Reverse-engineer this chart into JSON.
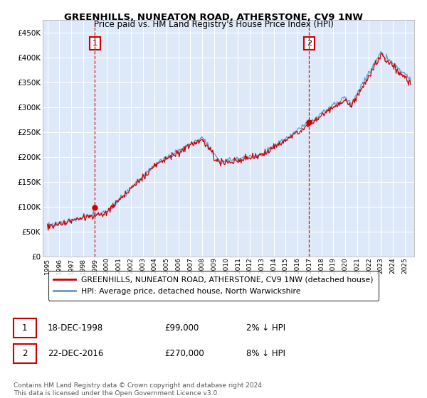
{
  "title": "GREENHILLS, NUNEATON ROAD, ATHERSTONE, CV9 1NW",
  "subtitle": "Price paid vs. HM Land Registry's House Price Index (HPI)",
  "ytick_values": [
    0,
    50000,
    100000,
    150000,
    200000,
    250000,
    300000,
    350000,
    400000,
    450000
  ],
  "ylim": [
    0,
    475000
  ],
  "xlim_start": 1994.6,
  "xlim_end": 2025.8,
  "bg_color": "#dde8f8",
  "grid_color": "#ffffff",
  "hpi_color": "#6699cc",
  "price_color": "#cc0000",
  "marker1_year": 1998.97,
  "marker1_value": 99000,
  "marker2_year": 2016.97,
  "marker2_value": 270000,
  "legend_label1": "GREENHILLS, NUNEATON ROAD, ATHERSTONE, CV9 1NW (detached house)",
  "legend_label2": "HPI: Average price, detached house, North Warwickshire",
  "annotation1_label": "1",
  "annotation2_label": "2",
  "table_row1": [
    "1",
    "18-DEC-1998",
    "£99,000",
    "2% ↓ HPI"
  ],
  "table_row2": [
    "2",
    "22-DEC-2016",
    "£270,000",
    "8% ↓ HPI"
  ],
  "footnote": "Contains HM Land Registry data © Crown copyright and database right 2024.\nThis data is licensed under the Open Government Licence v3.0."
}
